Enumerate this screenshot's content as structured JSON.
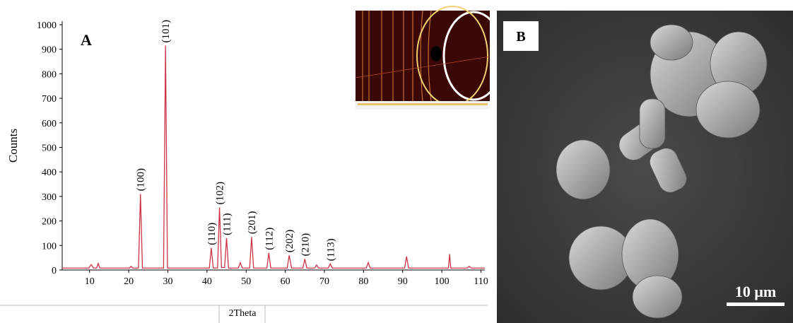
{
  "chart_data": {
    "type": "line",
    "panel_label": "A",
    "x_label": "2Theta",
    "y_label": "Counts",
    "x": [
      3,
      9.8,
      10.4,
      11,
      11.8,
      12.2,
      12.6,
      20.2,
      20.6,
      21,
      22.5,
      23.0,
      23.5,
      28.9,
      29.4,
      29.9,
      40.6,
      41.1,
      41.6,
      42.7,
      43.2,
      43.7,
      44.5,
      45.0,
      45.5,
      48,
      48.5,
      49,
      50.9,
      51.4,
      51.9,
      55.3,
      55.8,
      56.3,
      60.5,
      61.0,
      61.6,
      64.5,
      65.0,
      65.5,
      67.5,
      68,
      68.5,
      71.0,
      71.5,
      72,
      80.7,
      81.2,
      81.7,
      90.5,
      91.0,
      91.5,
      101.7,
      102.0,
      102.3,
      106.5,
      107,
      107.5,
      111
    ],
    "series": [
      {
        "color": "#cc3344",
        "values": [
          8,
          8,
          22,
          8,
          8,
          27,
          8,
          8,
          15,
          8,
          8,
          310,
          8,
          8,
          915,
          8,
          8,
          90,
          8,
          8,
          255,
          10,
          10,
          130,
          8,
          8,
          30,
          8,
          8,
          135,
          8,
          8,
          70,
          8,
          8,
          60,
          8,
          8,
          45,
          8,
          8,
          20,
          8,
          8,
          25,
          8,
          8,
          30,
          8,
          8,
          55,
          8,
          8,
          65,
          8,
          8,
          15,
          8,
          8
        ]
      }
    ],
    "xlim": [
      3,
      111
    ],
    "ylim": [
      0,
      1000
    ],
    "xticks": [
      10,
      20,
      30,
      40,
      50,
      60,
      70,
      80,
      90,
      100,
      110
    ],
    "yticks": [
      0,
      100,
      200,
      300,
      400,
      500,
      600,
      700,
      800,
      900,
      1000
    ],
    "annotations": [
      {
        "label": "(100)",
        "x": 23.0
      },
      {
        "label": "(101)",
        "x": 29.4
      },
      {
        "label": "(110)",
        "x": 41.1
      },
      {
        "label": "(102)",
        "x": 43.2
      },
      {
        "label": "(111)",
        "x": 45.0
      },
      {
        "label": "(201)",
        "x": 51.4
      },
      {
        "label": "(112)",
        "x": 55.8
      },
      {
        "label": "(202)",
        "x": 61.0
      },
      {
        "label": "(210)",
        "x": 65.0
      },
      {
        "label": "(113)",
        "x": 71.5
      }
    ]
  },
  "image": {
    "panel_label": "B",
    "scale_bar": "10 μm"
  }
}
